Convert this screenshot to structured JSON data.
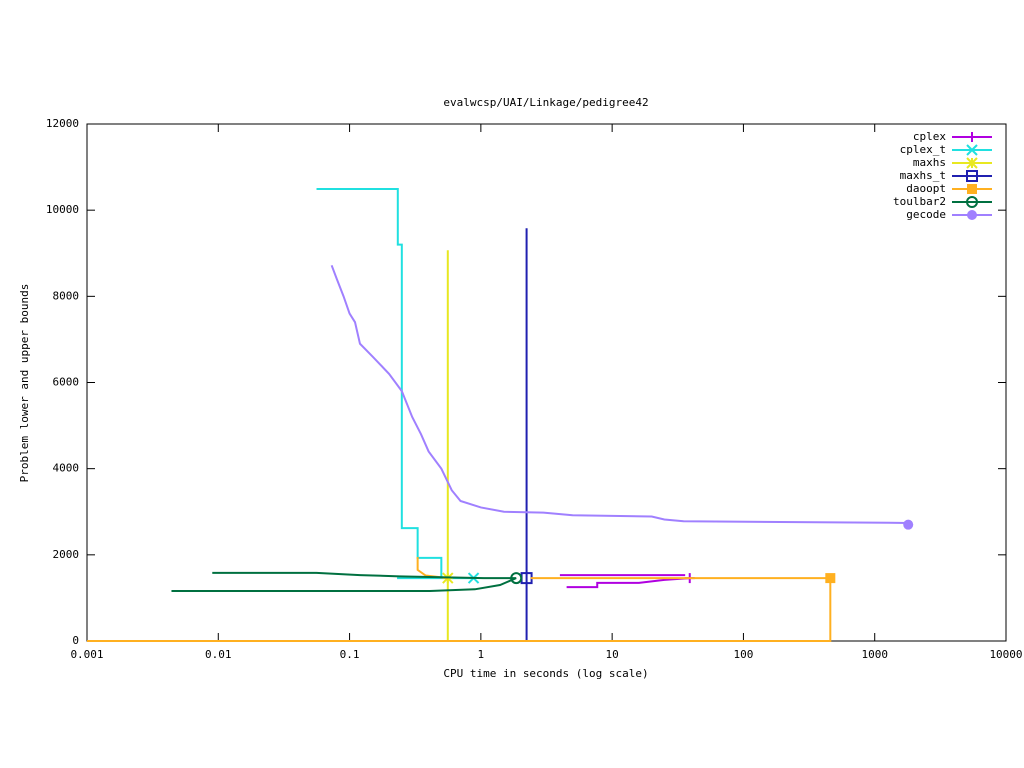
{
  "chart_data": {
    "type": "line",
    "title": "evalwcsp/UAI/Linkage/pedigree42",
    "x_label": "CPU time in seconds (log scale)",
    "y_label": "Problem lower and upper bounds",
    "xlog": true,
    "xlim": [
      0.001,
      10000
    ],
    "xticks": [
      0.001,
      0.01,
      0.1,
      1,
      10,
      100,
      1000,
      10000
    ],
    "ylim": [
      0,
      12000
    ],
    "yticks": [
      0,
      2000,
      4000,
      6000,
      8000,
      10000,
      12000
    ],
    "legend": "top-right",
    "series": [
      {
        "name": "cplex",
        "color": "#b000e0",
        "point": "plus",
        "x": [
          4,
          36,
          null,
          4.5,
          7.7,
          7.7,
          16,
          25,
          39
        ],
        "values": [
          1530,
          1530,
          null,
          1250,
          1250,
          1350,
          1350,
          1420,
          1460
        ]
      },
      {
        "name": "cplex_t",
        "color": "#20e0e0",
        "point": "cross",
        "x": [
          0.056,
          0.233,
          0.233,
          0.25,
          0.25,
          0.33,
          0.33,
          0.5,
          0.5,
          null,
          0.23,
          0.88
        ],
        "values": [
          10490,
          10490,
          9200,
          9200,
          2620,
          2620,
          1930,
          1930,
          1460,
          null,
          1460,
          1460
        ]
      },
      {
        "name": "maxhs",
        "color": "#e8e820",
        "point": "star",
        "x": [
          0.56,
          0.56,
          null,
          0.56
        ],
        "values": [
          9070,
          0,
          null,
          1460
        ]
      },
      {
        "name": "maxhs_t",
        "color": "#2020b0",
        "point": "square",
        "x": [
          2.23,
          2.23,
          null,
          2.23
        ],
        "values": [
          9580,
          0,
          null,
          1460
        ]
      },
      {
        "name": "daoopt",
        "color": "#ffb020",
        "point": "filled-square",
        "x": [
          0.33,
          0.33,
          0.38,
          0.56,
          null,
          0.001,
          459,
          459,
          2.4,
          null,
          459
        ],
        "values": [
          1950,
          1650,
          1520,
          1460,
          null,
          0,
          0,
          1460,
          1460,
          null,
          1460
        ]
      },
      {
        "name": "toulbar2",
        "color": "#007040",
        "point": "circle",
        "x": [
          0.009,
          0.056,
          0.12,
          0.24,
          1.05,
          1.86,
          null,
          0.0044,
          0.41,
          0.9,
          1.4,
          1.86
        ],
        "values": [
          1580,
          1580,
          1530,
          1500,
          1460,
          1460,
          null,
          1160,
          1160,
          1200,
          1300,
          1460
        ]
      },
      {
        "name": "gecode",
        "color": "#a080ff",
        "point": "filled-circle",
        "x": [
          0.073,
          0.08,
          0.09,
          0.1,
          0.11,
          0.12,
          0.15,
          0.2,
          0.25,
          0.3,
          0.35,
          0.4,
          0.5,
          0.6,
          0.7,
          1,
          1.5,
          3,
          5,
          20,
          25,
          35,
          1800,
          1800
        ],
        "values": [
          8720,
          8400,
          8000,
          7600,
          7400,
          6900,
          6600,
          6200,
          5800,
          5200,
          4800,
          4400,
          4000,
          3500,
          3250,
          3100,
          3000,
          2980,
          2920,
          2890,
          2820,
          2780,
          2740,
          2700
        ]
      }
    ]
  }
}
